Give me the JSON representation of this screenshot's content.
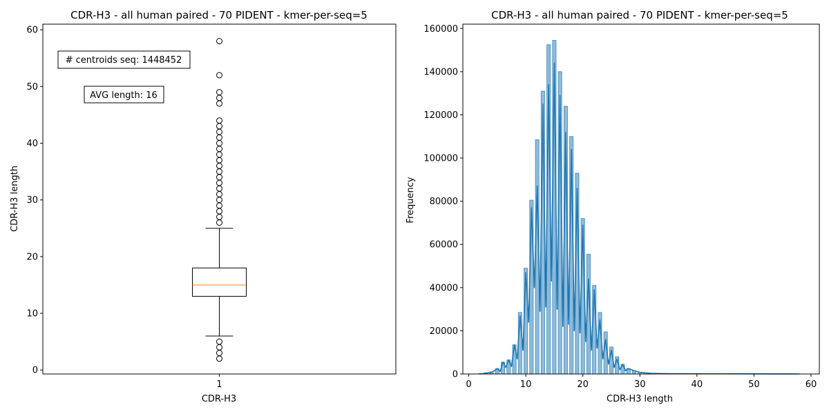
{
  "chart_data": [
    {
      "type": "box",
      "title": "CDR-H3 - all human paired - 70 PIDENT - kmer-per-seq=5",
      "xlabel": "CDR-H3",
      "ylabel": "CDR-H3 length",
      "categories": [
        "1"
      ],
      "ylim": [
        -0.7,
        61.0
      ],
      "yticks": [
        0,
        10,
        20,
        30,
        40,
        50,
        60
      ],
      "box": {
        "whislo": 6,
        "q1": 13,
        "median": 15,
        "q3": 18,
        "whishi": 25
      },
      "fliers_high": [
        26,
        27,
        28,
        29,
        30,
        31,
        32,
        33,
        34,
        35,
        36,
        37,
        38,
        39,
        40,
        41,
        42,
        43,
        44,
        47,
        48,
        49,
        52,
        58
      ],
      "fliers_low": [
        2,
        3,
        4,
        5
      ],
      "annotations": [
        "# centroids seq: 1448452",
        "AVG length: 16"
      ],
      "colors": {
        "box": "#000000",
        "median": "#ff7f0e"
      }
    },
    {
      "type": "histogram",
      "title": "CDR-H3 - all human paired - 70 PIDENT - kmer-per-seq=5",
      "xlabel": "CDR-H3 length",
      "ylabel": "Frequency",
      "xlim": [
        0,
        60
      ],
      "ylim": [
        0,
        162000
      ],
      "xticks": [
        0,
        10,
        20,
        30,
        40,
        50,
        60
      ],
      "yticks": [
        0,
        20000,
        40000,
        60000,
        80000,
        100000,
        120000,
        140000,
        160000
      ],
      "bins": [
        {
          "x": 2,
          "y": 200
        },
        {
          "x": 3,
          "y": 600
        },
        {
          "x": 4,
          "y": 1000
        },
        {
          "x": 5,
          "y": 2500
        },
        {
          "x": 6,
          "y": 5500
        },
        {
          "x": 7,
          "y": 6500
        },
        {
          "x": 8,
          "y": 13500
        },
        {
          "x": 9,
          "y": 28500
        },
        {
          "x": 10,
          "y": 49000
        },
        {
          "x": 11,
          "y": 80500
        },
        {
          "x": 12,
          "y": 108500
        },
        {
          "x": 13,
          "y": 131000
        },
        {
          "x": 14,
          "y": 152500
        },
        {
          "x": 15,
          "y": 154500
        },
        {
          "x": 16,
          "y": 140000
        },
        {
          "x": 17,
          "y": 124000
        },
        {
          "x": 18,
          "y": 110000
        },
        {
          "x": 19,
          "y": 93000
        },
        {
          "x": 20,
          "y": 72000
        },
        {
          "x": 21,
          "y": 55500
        },
        {
          "x": 22,
          "y": 41000
        },
        {
          "x": 23,
          "y": 28500
        },
        {
          "x": 24,
          "y": 19500
        },
        {
          "x": 25,
          "y": 12500
        },
        {
          "x": 26,
          "y": 8000
        },
        {
          "x": 27,
          "y": 4500
        },
        {
          "x": 28,
          "y": 2500
        },
        {
          "x": 29,
          "y": 1500
        },
        {
          "x": 30,
          "y": 800
        },
        {
          "x": 31,
          "y": 500
        },
        {
          "x": 32,
          "y": 300
        }
      ],
      "kde_line": [
        [
          2,
          0
        ],
        [
          3,
          300
        ],
        [
          4,
          800
        ],
        [
          4.5,
          1500
        ],
        [
          5,
          2500
        ],
        [
          5.5,
          1200
        ],
        [
          6,
          5500
        ],
        [
          6.5,
          3000
        ],
        [
          7,
          6500
        ],
        [
          7.5,
          3500
        ],
        [
          8,
          13500
        ],
        [
          8.5,
          7000
        ],
        [
          9,
          27000
        ],
        [
          9.5,
          11000
        ],
        [
          10,
          47000
        ],
        [
          10.5,
          24000
        ],
        [
          11,
          77000
        ],
        [
          11.5,
          40000
        ],
        [
          12,
          87000
        ],
        [
          12.5,
          29000
        ],
        [
          13,
          125000
        ],
        [
          13.5,
          31000
        ],
        [
          14,
          134000
        ],
        [
          14.5,
          43000
        ],
        [
          15,
          144000
        ],
        [
          15.5,
          30000
        ],
        [
          16,
          129000
        ],
        [
          16.5,
          22000
        ],
        [
          17,
          112000
        ],
        [
          17.5,
          23000
        ],
        [
          18,
          104000
        ],
        [
          18.5,
          20000
        ],
        [
          19,
          86000
        ],
        [
          19.5,
          19000
        ],
        [
          20,
          69000
        ],
        [
          20.5,
          15000
        ],
        [
          21,
          44000
        ],
        [
          21.5,
          11000
        ],
        [
          22,
          39000
        ],
        [
          22.5,
          12000
        ],
        [
          23,
          25000
        ],
        [
          23.5,
          7000
        ],
        [
          24,
          16000
        ],
        [
          24.5,
          4500
        ],
        [
          25,
          11000
        ],
        [
          25.5,
          3000
        ],
        [
          26,
          7000
        ],
        [
          26.5,
          2000
        ],
        [
          27,
          4500
        ],
        [
          27.5,
          1500
        ],
        [
          28,
          2500
        ],
        [
          29,
          1500
        ],
        [
          30,
          800
        ],
        [
          31,
          500
        ],
        [
          32,
          300
        ],
        [
          34,
          200
        ],
        [
          36,
          150
        ],
        [
          40,
          100
        ],
        [
          45,
          80
        ],
        [
          50,
          50
        ],
        [
          58,
          0
        ]
      ],
      "colors": {
        "bar_fill": "#1f77b4",
        "bar_alpha": "0.5",
        "line": "#1f77b4"
      }
    }
  ]
}
